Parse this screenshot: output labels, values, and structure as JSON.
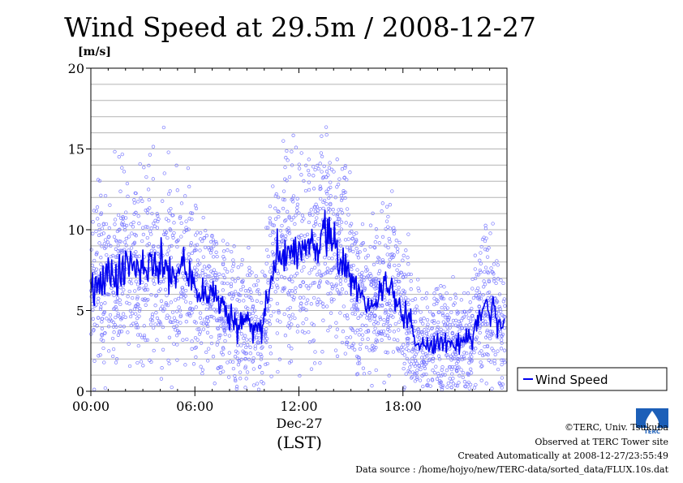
{
  "chart_data": {
    "type": "line",
    "title": "Wind Speed at 29.5m / 2008-12-27",
    "ylabel": "[m/s]",
    "xlabel": "(LST)",
    "date_label": "Dec-27",
    "ylim": [
      0,
      20
    ],
    "xlim": [
      0,
      24
    ],
    "y_ticks": [
      0,
      5,
      10,
      15,
      20
    ],
    "y_tick_labels": [
      "0",
      "5",
      "10",
      "15",
      "20"
    ],
    "x_ticks": [
      0,
      6,
      12,
      18
    ],
    "x_tick_labels": [
      "00:00",
      "06:00",
      "12:00",
      "18:00"
    ],
    "grid": true,
    "legend_position": "right",
    "series": [
      {
        "name": "Wind Speed",
        "color": "#0000ee",
        "scatter_color": "#7b7bff",
        "x": [
          0,
          0.5,
          1,
          1.5,
          2,
          2.5,
          3,
          3.5,
          4,
          4.5,
          5,
          5.5,
          6,
          6.5,
          7,
          7.5,
          8,
          8.5,
          9,
          9.5,
          9.9,
          10.3,
          10.6,
          11,
          11.5,
          12,
          12.5,
          13,
          13.5,
          14,
          14.5,
          15,
          15.5,
          16,
          16.5,
          17,
          17.5,
          18,
          18.5,
          19,
          19.5,
          20,
          20.5,
          21,
          21.5,
          22,
          22.3,
          22.6,
          23,
          23.5,
          23.9
        ],
        "values": [
          6.8,
          6.9,
          7.1,
          7.3,
          7.7,
          7.8,
          7.9,
          8.0,
          8.0,
          7.5,
          7.6,
          7.8,
          6.5,
          5.8,
          6.0,
          5.5,
          4.6,
          4.2,
          4.3,
          4.0,
          3.7,
          6.5,
          8.0,
          8.8,
          8.5,
          8.8,
          9.0,
          9.2,
          9.8,
          8.8,
          8.2,
          6.8,
          5.8,
          5.2,
          5.8,
          6.4,
          6.1,
          5.0,
          3.9,
          2.7,
          2.8,
          3.0,
          3.2,
          3.0,
          2.9,
          3.3,
          4.4,
          5.5,
          5.2,
          4.2,
          3.9
        ]
      }
    ]
  },
  "legend": {
    "label": "Wind Speed"
  },
  "footer": {
    "copyright": "©TERC, Univ. Tsukuba",
    "observed": "Observed at TERC Tower site",
    "created": "Created Automatically at 2008-12-27/23:55:49",
    "source": "Data source : /home/hojyo/new/TERC-data/sorted_data/FLUX.10s.dat"
  },
  "logo": {
    "text": "TERC"
  }
}
